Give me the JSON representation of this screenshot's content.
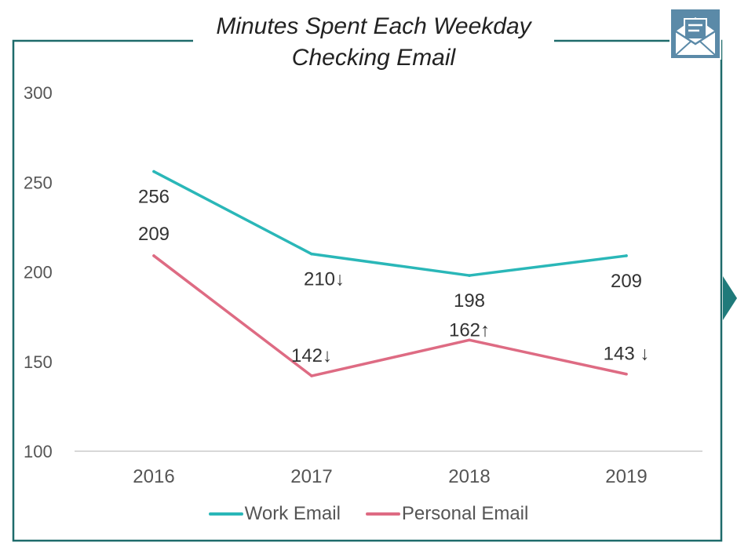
{
  "chart_data": {
    "type": "line",
    "title": "Minutes Spent Each Weekday Checking Email",
    "title_lines": [
      "Minutes Spent Each Weekday",
      "Checking Email"
    ],
    "categories": [
      "2016",
      "2017",
      "2018",
      "2019"
    ],
    "ylim": [
      100,
      300
    ],
    "yticks": [
      "100",
      "150",
      "200",
      "250",
      "300"
    ],
    "grid": false,
    "legend_position": "bottom",
    "series": [
      {
        "name": "Work Email",
        "color": "#2ab7b8",
        "values": [
          256,
          210,
          198,
          209
        ],
        "labels": [
          "256",
          "210↓",
          "198",
          "209"
        ]
      },
      {
        "name": "Personal Email",
        "color": "#de6b83",
        "values": [
          209,
          142,
          162,
          143
        ],
        "labels": [
          "209",
          "142↓",
          "162↑",
          "143 ↓"
        ]
      }
    ]
  },
  "colors": {
    "frame": "#1e6b6b",
    "axis": "#cccccc",
    "tick_text": "#555555",
    "label_text": "#333333"
  },
  "icons": {
    "badge": "envelope-icon",
    "side": "chevron-right-icon"
  }
}
